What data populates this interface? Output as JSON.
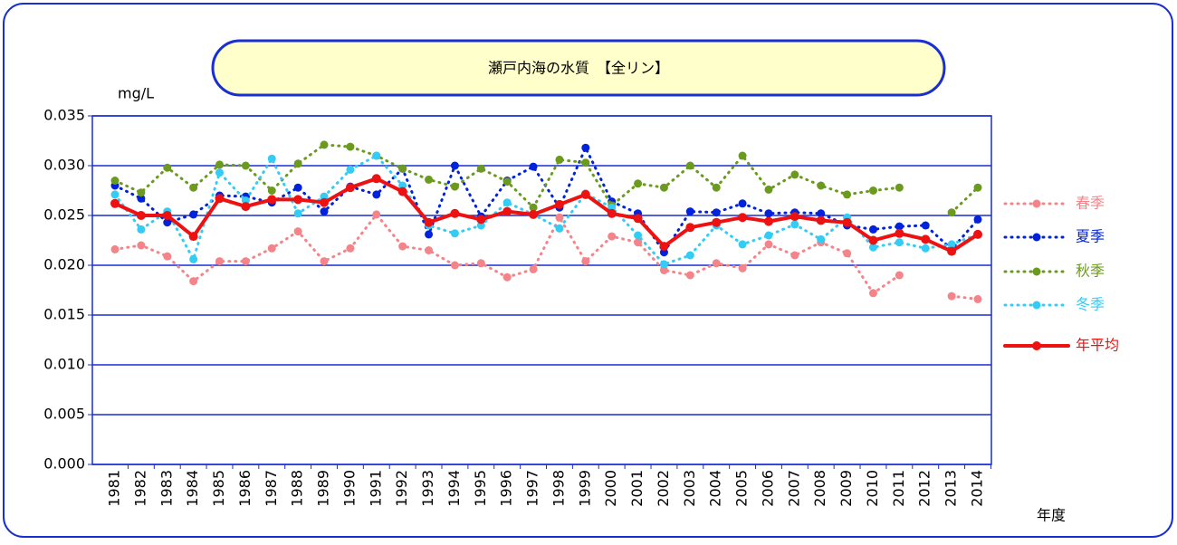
{
  "chart_data": {
    "type": "line",
    "title": "瀬戸内海の水質　【全リン】",
    "y_label": "mg/L",
    "x_label": "年度",
    "categories": [
      "1981",
      "1982",
      "1983",
      "1984",
      "1985",
      "1986",
      "1987",
      "1988",
      "1989",
      "1990",
      "1991",
      "1992",
      "1993",
      "1994",
      "1995",
      "1996",
      "1997",
      "1998",
      "1999",
      "2000",
      "2001",
      "2002",
      "2003",
      "2004",
      "2005",
      "2006",
      "2007",
      "2008",
      "2009",
      "2010",
      "2011",
      "2012",
      "2013",
      "2014"
    ],
    "ylim": [
      0,
      0.035
    ],
    "yticks": [
      {
        "value": 0,
        "label": "0.000"
      },
      0.005,
      {
        "value": 0.01,
        "label": "0.010"
      },
      0.015,
      {
        "value": 0.02,
        "label": "0.020"
      },
      0.025,
      {
        "value": 0.03,
        "label": "0.030"
      },
      0.035
    ],
    "grid": true,
    "legend": "right",
    "series": [
      {
        "name": "春季",
        "color": "#f4848a",
        "style": "dotted",
        "values": [
          0.0216,
          0.022,
          0.0209,
          0.0184,
          0.0204,
          0.0204,
          0.0217,
          0.0234,
          0.0204,
          0.0217,
          0.0251,
          0.0219,
          0.0215,
          0.02,
          0.0202,
          0.0188,
          0.0196,
          0.0248,
          0.0204,
          0.0229,
          0.0223,
          0.0195,
          0.019,
          0.0202,
          0.0197,
          0.0221,
          0.021,
          0.0223,
          0.0212,
          0.0172,
          0.019,
          null,
          0.0169,
          0.0166
        ]
      },
      {
        "name": "夏季",
        "color": "#0022dd",
        "style": "dotted",
        "values": [
          0.028,
          0.0267,
          0.0243,
          0.0251,
          0.027,
          0.0269,
          0.0263,
          0.0278,
          0.0254,
          0.0279,
          0.0271,
          0.0297,
          0.0231,
          0.03,
          0.0249,
          0.0285,
          0.0299,
          0.0258,
          0.0318,
          0.0264,
          0.0252,
          0.0213,
          0.0254,
          0.0253,
          0.0262,
          0.0252,
          0.0253,
          0.0252,
          0.024,
          0.0236,
          0.0239,
          0.024,
          0.0216,
          0.0246
        ]
      },
      {
        "name": "秋季",
        "color": "#6b9a1e",
        "style": "dotted",
        "values": [
          0.0285,
          0.0273,
          0.0298,
          0.0278,
          0.0301,
          0.03,
          0.0275,
          0.0302,
          0.0321,
          0.0319,
          0.031,
          0.0297,
          0.0286,
          0.0279,
          0.0297,
          0.0284,
          0.0258,
          0.0306,
          0.0303,
          0.026,
          0.0282,
          0.0278,
          0.03,
          0.0278,
          0.031,
          0.0276,
          0.0291,
          0.028,
          0.0271,
          0.0275,
          0.0278,
          null,
          0.0253,
          0.0278
        ]
      },
      {
        "name": "冬季",
        "color": "#33ccf5",
        "style": "dotted",
        "values": [
          0.0271,
          0.0236,
          0.0254,
          0.0206,
          0.0293,
          0.0265,
          0.0307,
          0.0252,
          0.0269,
          0.0296,
          0.031,
          0.028,
          0.024,
          0.0232,
          0.024,
          0.0263,
          0.0251,
          0.0237,
          0.0272,
          0.0258,
          0.023,
          0.0201,
          0.021,
          0.024,
          0.0221,
          0.023,
          0.0241,
          0.0226,
          0.0248,
          0.0218,
          0.0223,
          0.0217,
          0.0221,
          0.0231
        ]
      },
      {
        "name": "年平均",
        "color": "#ee1111",
        "style": "solid",
        "values": [
          0.0262,
          0.025,
          0.025,
          0.0229,
          0.0267,
          0.0259,
          0.0266,
          0.0266,
          0.0263,
          0.0278,
          0.0287,
          0.0274,
          0.0243,
          0.0252,
          0.0246,
          0.0254,
          0.0251,
          0.0261,
          0.0271,
          0.0252,
          0.0247,
          0.0219,
          0.0238,
          0.0243,
          0.0248,
          0.0244,
          0.0249,
          0.0245,
          0.0243,
          0.0225,
          0.0232,
          0.0226,
          0.0214,
          0.0231
        ]
      }
    ]
  }
}
